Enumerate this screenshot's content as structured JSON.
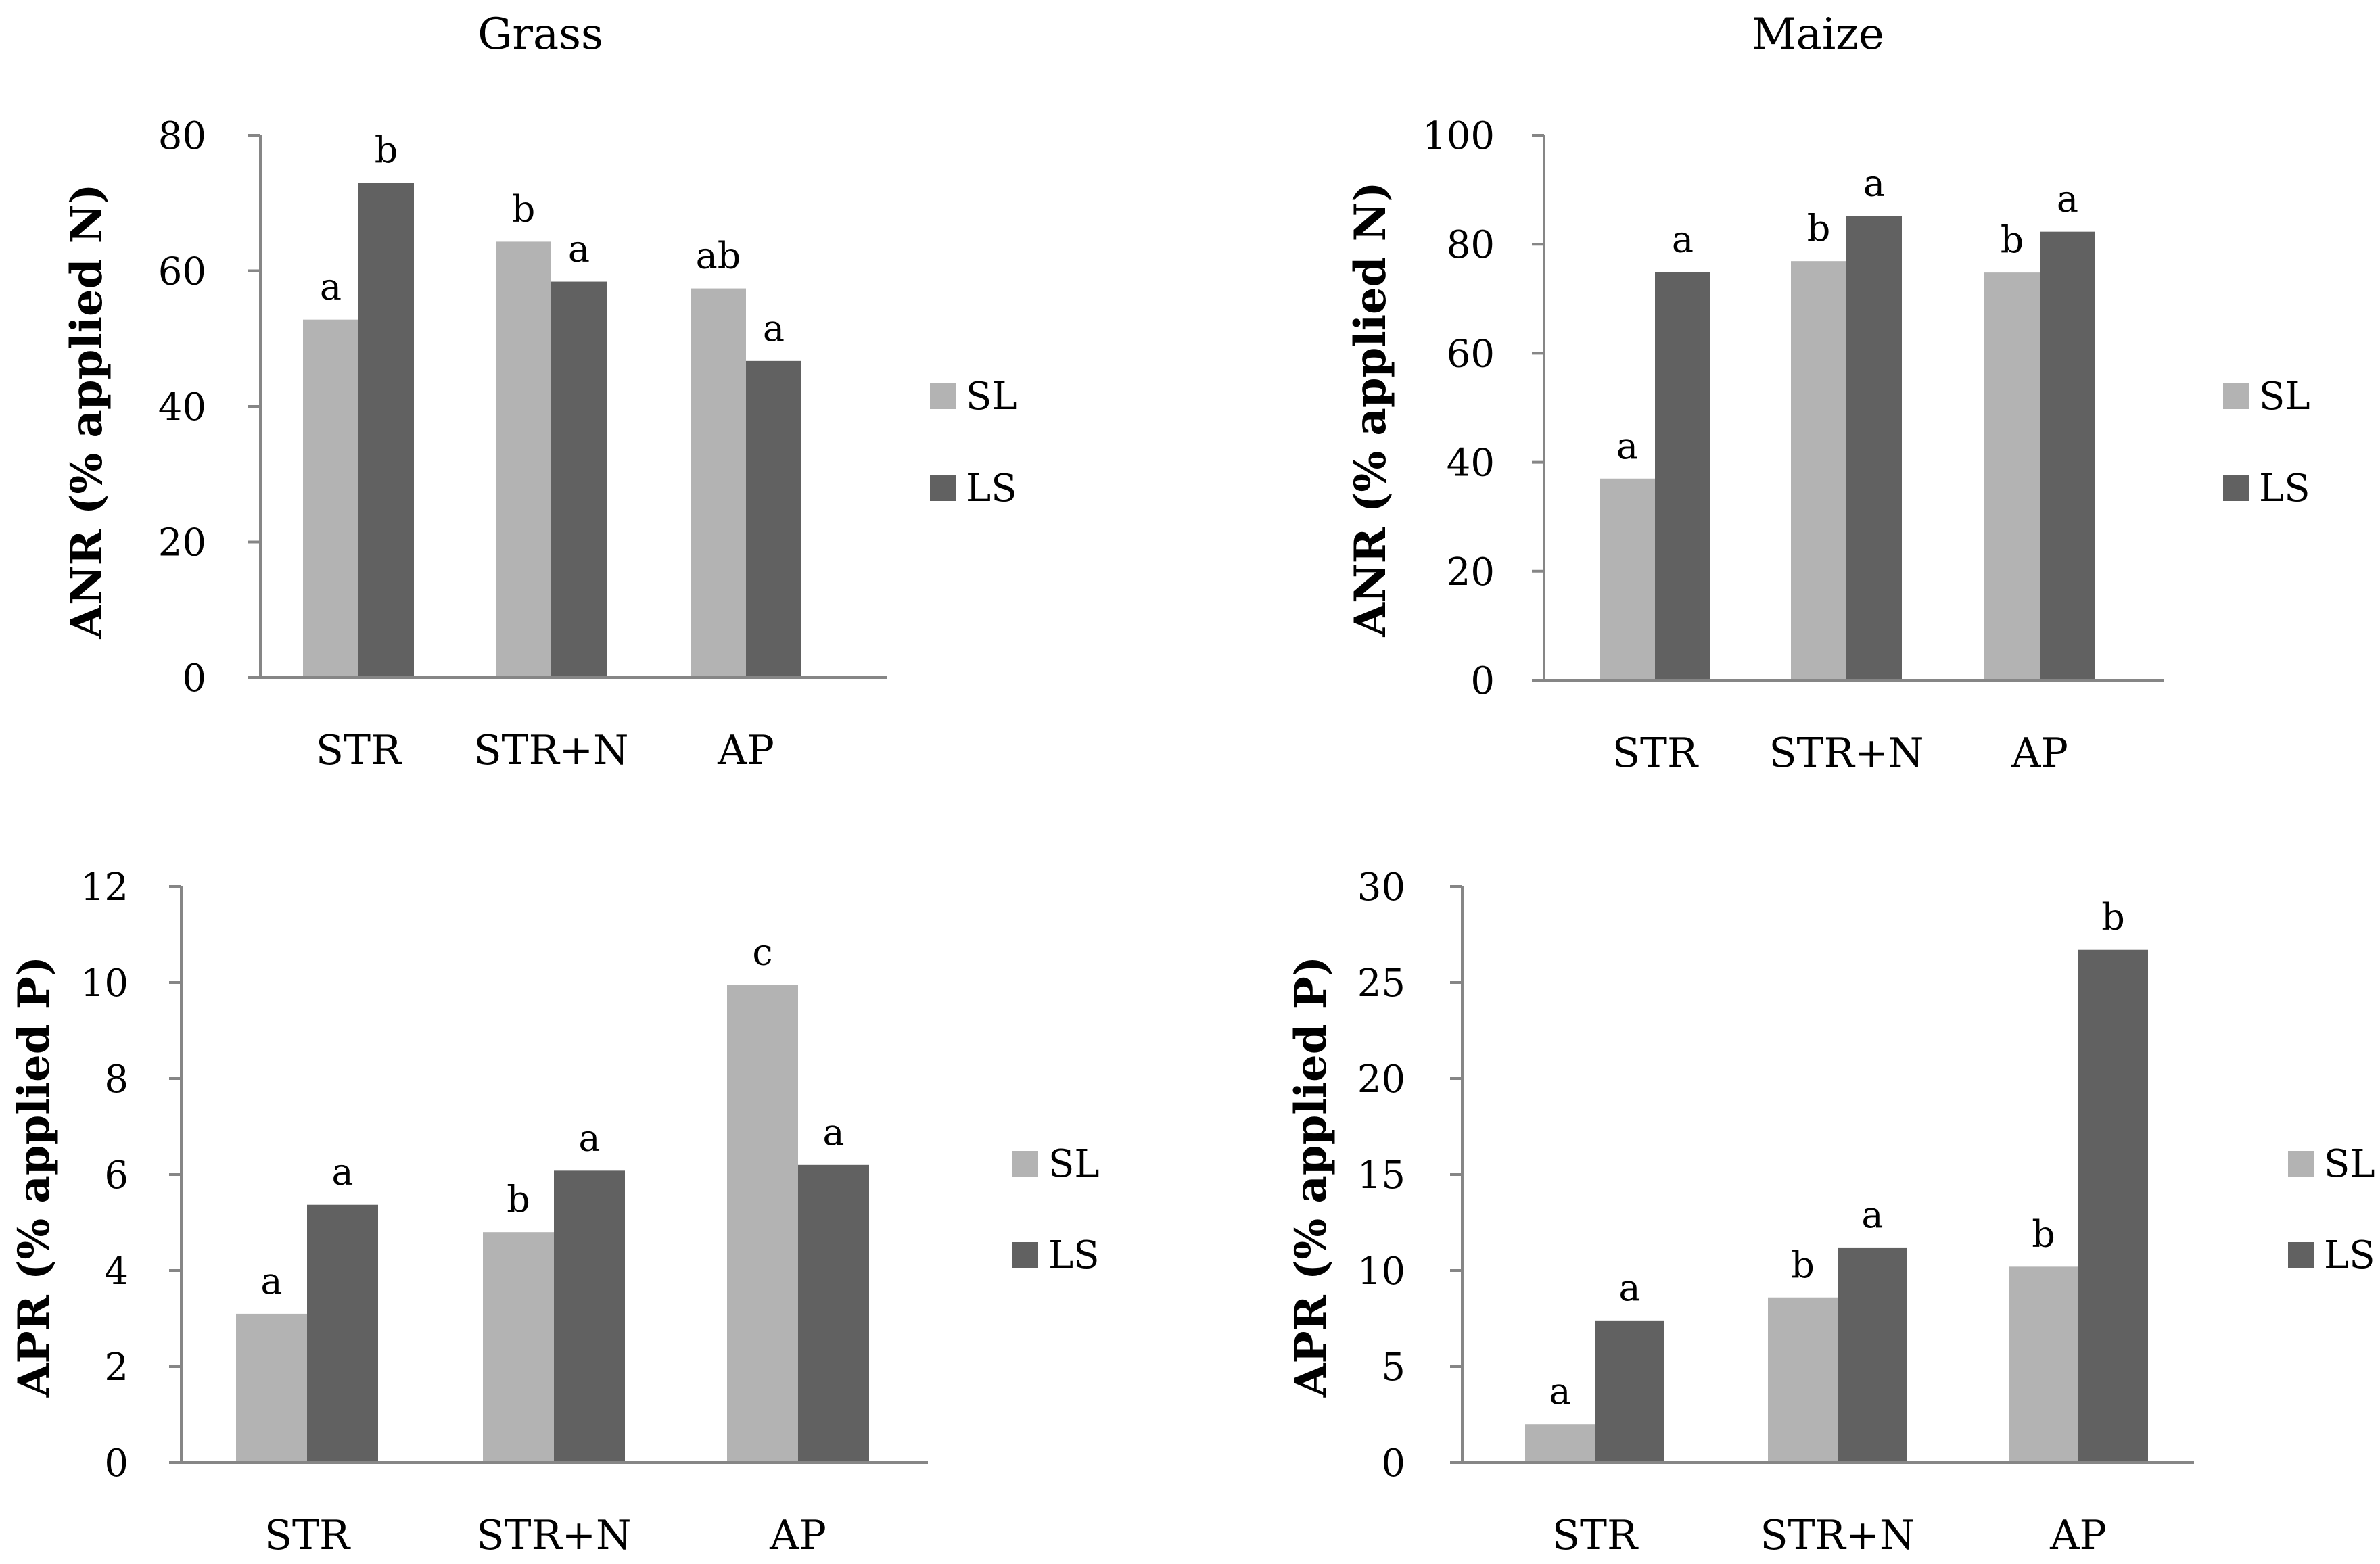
{
  "colors": {
    "SL": "#b3b3b3",
    "LS": "#616161"
  },
  "chart_data": [
    {
      "type": "bar",
      "title": "Grass",
      "ylabel": "ANR (% applied N)",
      "xlabel": "",
      "categories": [
        "STR",
        "STR+N",
        "AP"
      ],
      "ylim": [
        0,
        80
      ],
      "yticks": [
        "0",
        "20",
        "40",
        "60",
        "80"
      ],
      "series": [
        {
          "name": "SL",
          "values": [
            52.8,
            64.3,
            57.4
          ],
          "labels": [
            "a",
            "b",
            "ab"
          ]
        },
        {
          "name": "LS",
          "values": [
            73.0,
            58.4,
            46.7
          ],
          "labels": [
            "b",
            "a",
            "a"
          ]
        }
      ],
      "legend": "right"
    },
    {
      "type": "bar",
      "title": "Maize",
      "ylabel": "ANR (% applied N)",
      "xlabel": "",
      "categories": [
        "STR",
        "STR+N",
        "AP"
      ],
      "ylim": [
        0,
        100
      ],
      "yticks": [
        "0",
        "20",
        "40",
        "60",
        "80",
        "100"
      ],
      "series": [
        {
          "name": "SL",
          "values": [
            37.0,
            76.9,
            74.8
          ],
          "labels": [
            "a",
            "b",
            "b"
          ]
        },
        {
          "name": "LS",
          "values": [
            74.9,
            85.2,
            82.3
          ],
          "labels": [
            "a",
            "a",
            "a"
          ]
        }
      ],
      "legend": "right"
    },
    {
      "type": "bar",
      "title": "",
      "ylabel": "APR (% applied P)",
      "xlabel": "",
      "categories": [
        "STR",
        "STR+N",
        "AP"
      ],
      "ylim": [
        0,
        12
      ],
      "yticks": [
        "0",
        "2",
        "4",
        "6",
        "8",
        "10",
        "12"
      ],
      "series": [
        {
          "name": "SL",
          "values": [
            3.1,
            4.8,
            9.95
          ],
          "labels": [
            "a",
            "b",
            "c"
          ]
        },
        {
          "name": "LS",
          "values": [
            5.37,
            6.08,
            6.2
          ],
          "labels": [
            "a",
            "a",
            "a"
          ]
        }
      ],
      "legend": "right"
    },
    {
      "type": "bar",
      "title": "",
      "ylabel": "APR (% applied P)",
      "xlabel": "",
      "categories": [
        "STR",
        "STR+N",
        "AP"
      ],
      "ylim": [
        0,
        30
      ],
      "yticks": [
        "0",
        "5",
        "10",
        "15",
        "20",
        "25",
        "30"
      ],
      "series": [
        {
          "name": "SL",
          "values": [
            2.0,
            8.6,
            10.2
          ],
          "labels": [
            "a",
            "b",
            "b"
          ]
        },
        {
          "name": "LS",
          "values": [
            7.4,
            11.2,
            26.7
          ],
          "labels": [
            "a",
            "a",
            "b"
          ]
        }
      ],
      "legend": "right"
    }
  ]
}
